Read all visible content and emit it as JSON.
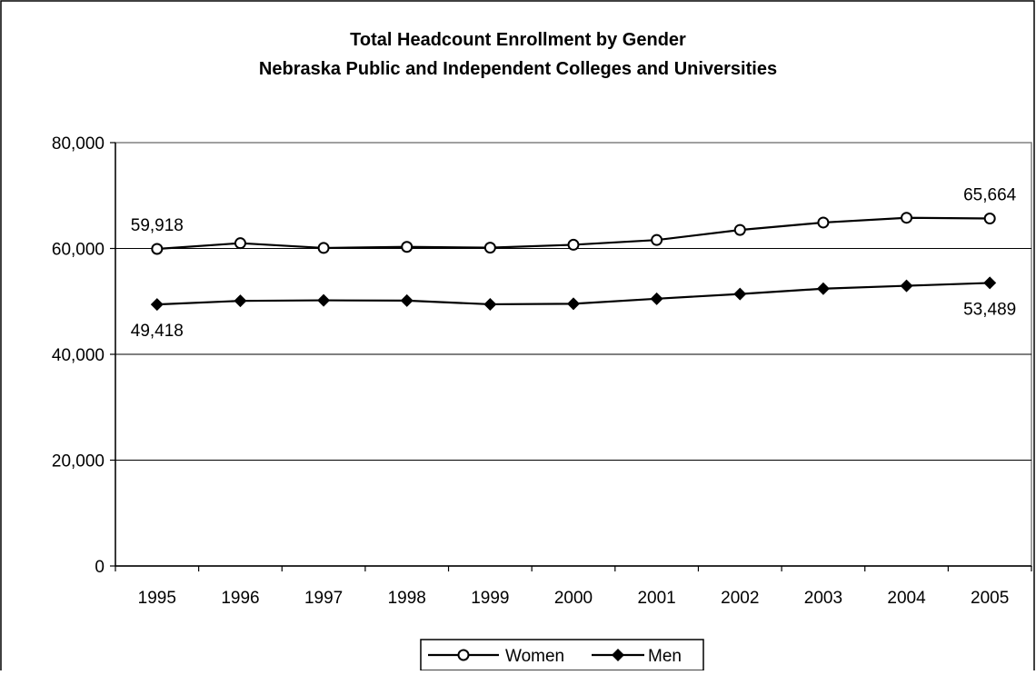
{
  "chart_data": {
    "type": "line",
    "title": "Total Headcount Enrollment by Gender",
    "subtitle": "Nebraska Public and Independent Colleges and Universities",
    "xlabel": "",
    "ylabel": "",
    "categories": [
      "1995",
      "1996",
      "1997",
      "1998",
      "1999",
      "2000",
      "2001",
      "2002",
      "2003",
      "2004",
      "2005"
    ],
    "ylim": [
      0,
      80000
    ],
    "yticks": [
      0,
      20000,
      40000,
      60000,
      80000
    ],
    "ytick_labels": [
      "0",
      "20,000",
      "40,000",
      "60,000",
      "80,000"
    ],
    "grid": true,
    "legend_position": "bottom",
    "series": [
      {
        "name": "Women",
        "marker": "open-circle",
        "color": "#000000",
        "values": [
          59918,
          61000,
          60100,
          60300,
          60150,
          60700,
          61600,
          63500,
          64900,
          65800,
          65664
        ]
      },
      {
        "name": "Men",
        "marker": "filled-diamond",
        "color": "#000000",
        "values": [
          49418,
          50100,
          50200,
          50150,
          49450,
          49550,
          50500,
          51400,
          52400,
          52950,
          53489
        ]
      }
    ],
    "data_labels": [
      {
        "series": 0,
        "index": 0,
        "text": "59,918",
        "position": "above"
      },
      {
        "series": 0,
        "index": 10,
        "text": "65,664",
        "position": "above"
      },
      {
        "series": 1,
        "index": 0,
        "text": "49,418",
        "position": "below"
      },
      {
        "series": 1,
        "index": 10,
        "text": "53,489",
        "position": "below"
      }
    ]
  }
}
